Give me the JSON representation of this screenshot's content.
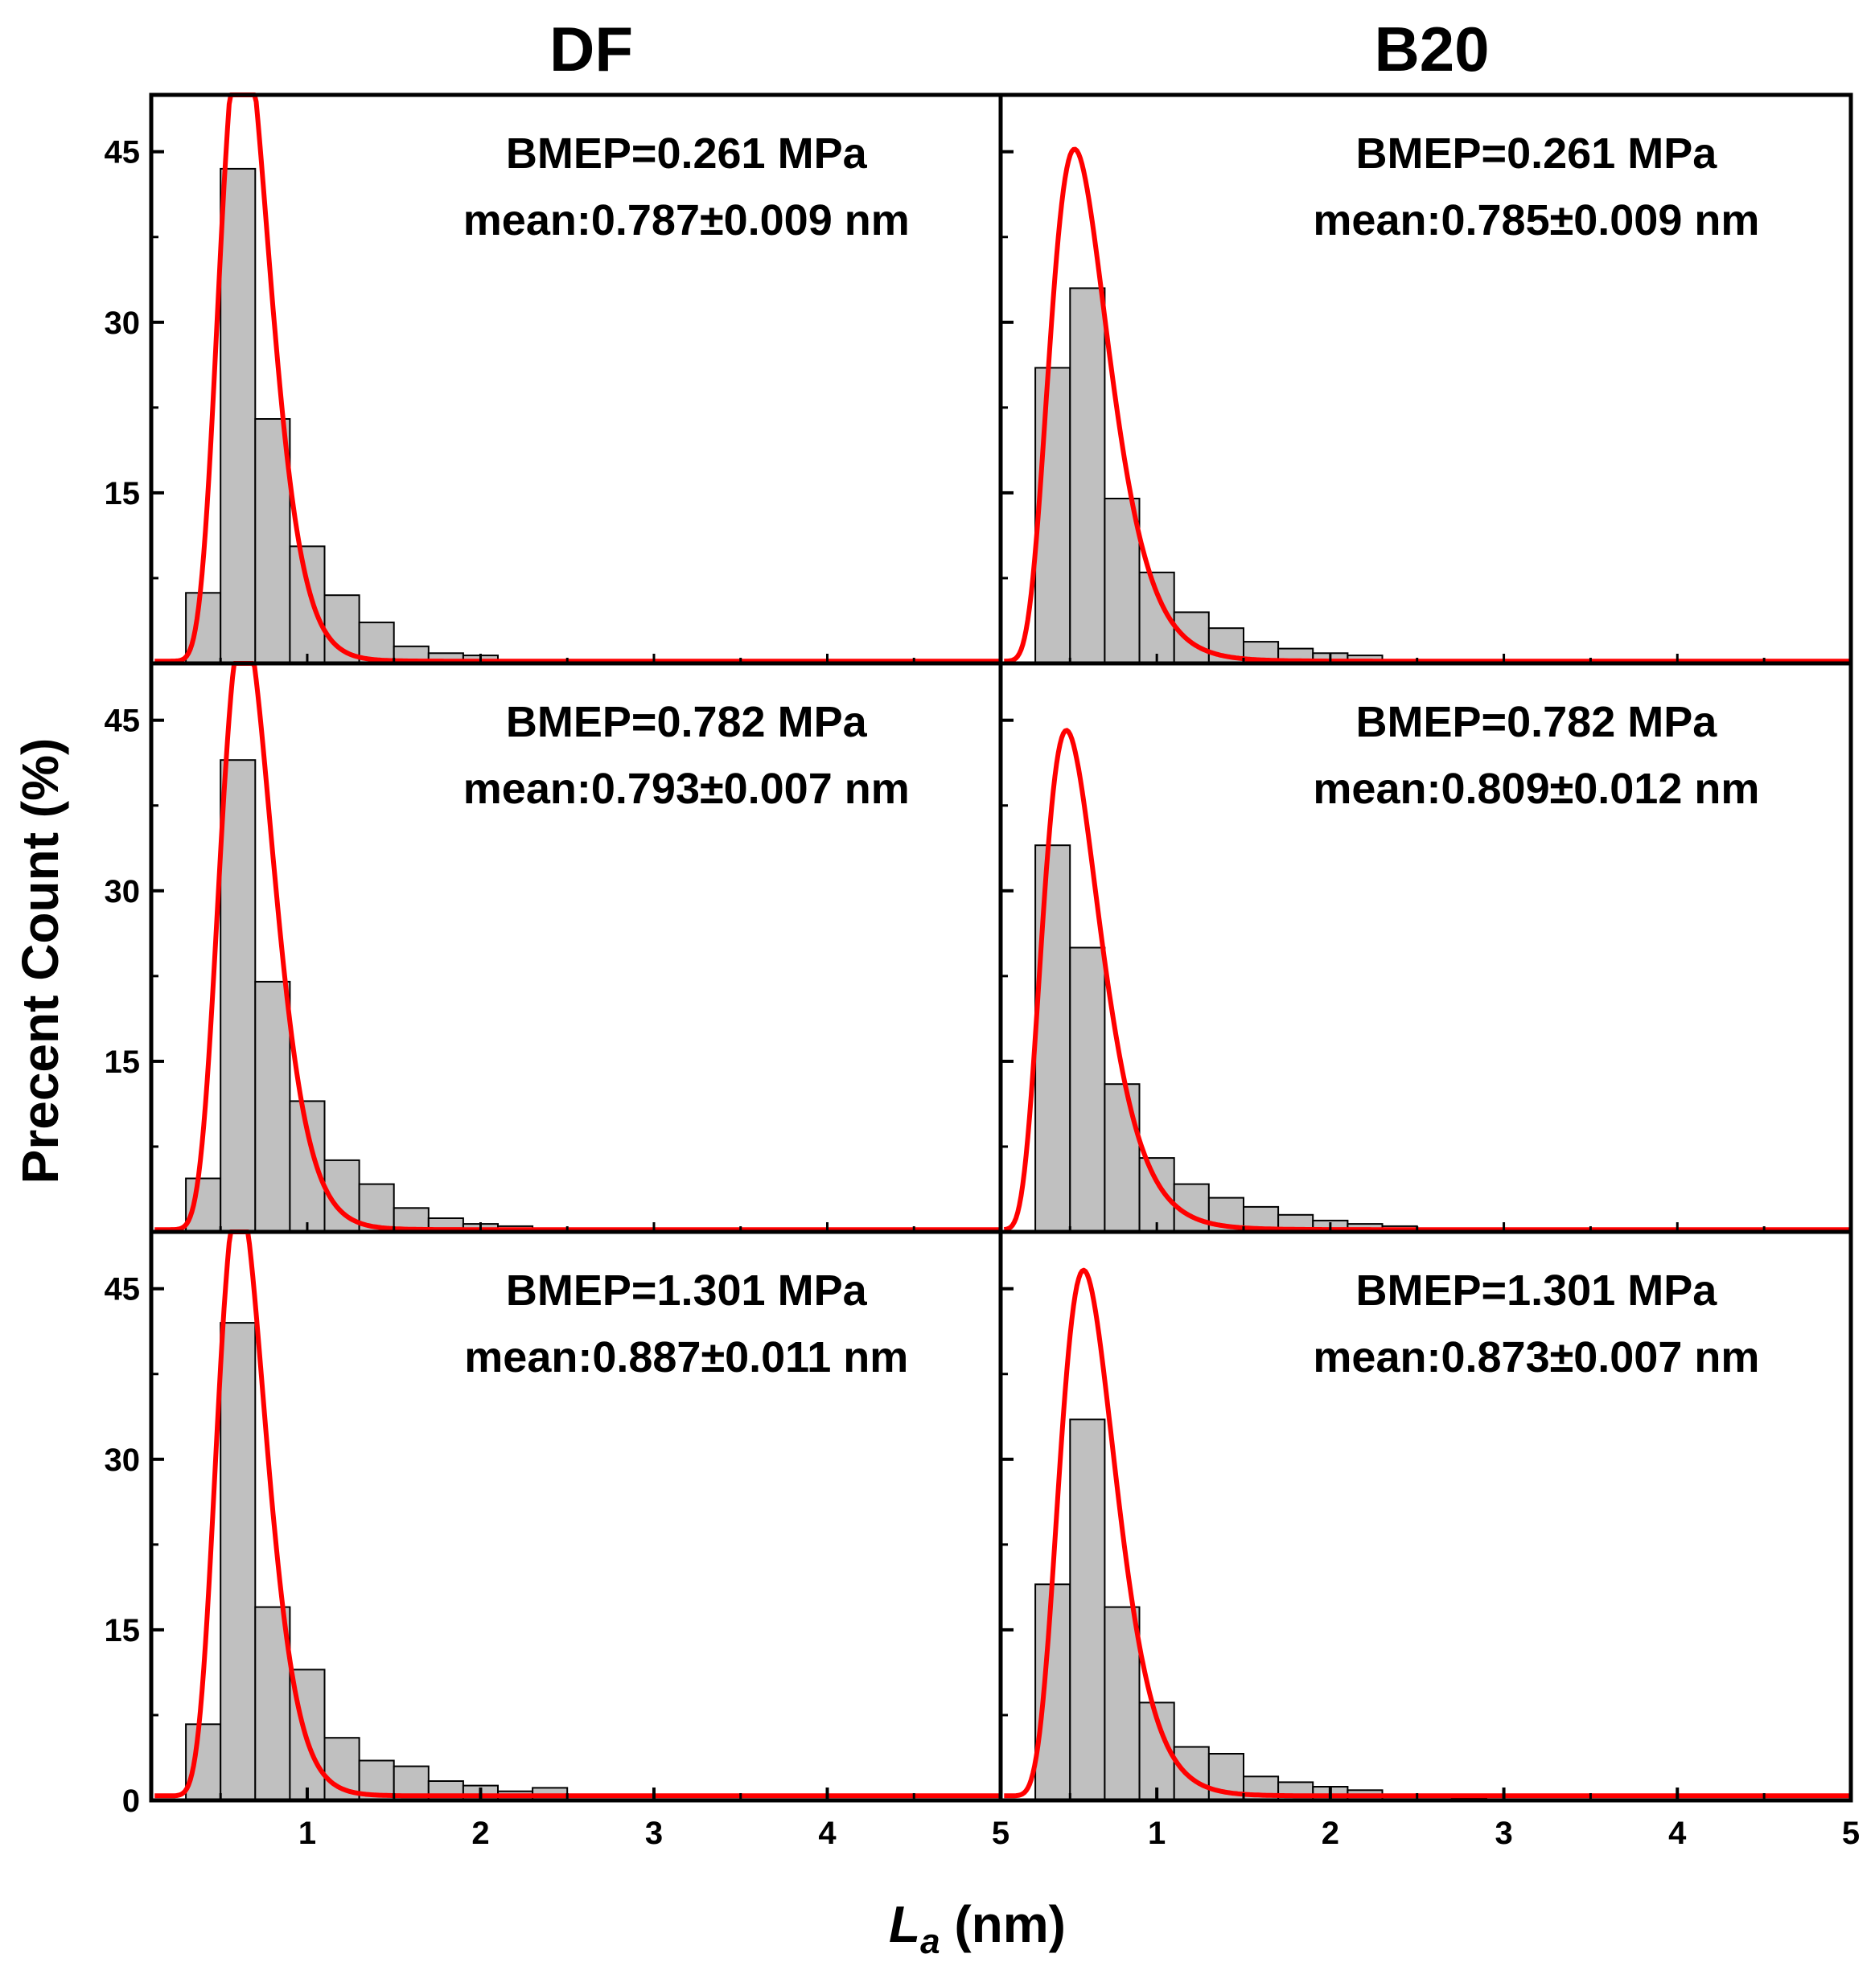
{
  "chart_data": {
    "type": "bar",
    "column_titles": [
      "DF",
      "B20"
    ],
    "xlabel_main": "L",
    "xlabel_sub": "a",
    "xlabel_unit": " (nm)",
    "ylabel": "Precent Count (%)",
    "xlim": [
      0.1,
      5
    ],
    "ylim": [
      0,
      50
    ],
    "x_ticks": [
      1,
      2,
      3,
      4,
      5
    ],
    "x_minor_ticks": [
      0.5,
      1.5,
      2.5,
      3.5,
      4.5
    ],
    "y_ticks": [
      0,
      15,
      30,
      45
    ],
    "y_minor_ticks": [
      7.5,
      22.5,
      37.5
    ],
    "bin_width": 0.2,
    "bar_color": "#c0c0c0",
    "fit_color": "#ff0000",
    "panels": [
      {
        "row": 0,
        "col": 0,
        "fuel": "DF",
        "bmep": "BMEP=0.261 MPa",
        "mean": "mean:0.787±0.009 nm",
        "bin_left": [
          0.3,
          0.5,
          0.7,
          0.9,
          1.1,
          1.3,
          1.5,
          1.7,
          1.9,
          2.1,
          2.3
        ],
        "values": [
          6.2,
          43.5,
          21.5,
          10.3,
          6.0,
          3.6,
          1.5,
          0.9,
          0.7,
          0.2,
          0.1
        ],
        "fit": {
          "mu": -0.42,
          "sigma": 0.23,
          "area": 21,
          "y0": 0.2
        }
      },
      {
        "row": 0,
        "col": 1,
        "fuel": "B20",
        "bmep": "BMEP=0.261 MPa",
        "mean": "mean:0.785±0.009 nm",
        "bin_left": [
          0.3,
          0.5,
          0.7,
          0.9,
          1.1,
          1.3,
          1.5,
          1.7,
          1.9,
          2.1,
          2.3,
          2.5,
          2.7
        ],
        "values": [
          26,
          33,
          14.5,
          8.0,
          4.5,
          3.1,
          1.9,
          1.3,
          0.9,
          0.7,
          0.3,
          0.3,
          0.1
        ],
        "fit": {
          "mu": -0.54,
          "sigma": 0.32,
          "area": 20,
          "y0": 0.2
        }
      },
      {
        "row": 1,
        "col": 0,
        "fuel": "DF",
        "bmep": "BMEP=0.782 MPa",
        "mean": "mean:0.793±0.007 nm",
        "bin_left": [
          0.3,
          0.5,
          0.7,
          0.9,
          1.1,
          1.3,
          1.5,
          1.7,
          1.9,
          2.1,
          2.3
        ],
        "values": [
          4.7,
          41.5,
          22,
          11.5,
          6.3,
          4.2,
          2.1,
          1.2,
          0.7,
          0.5,
          0.1
        ],
        "fit": {
          "mu": -0.4,
          "sigma": 0.24,
          "area": 21,
          "y0": 0.2
        }
      },
      {
        "row": 1,
        "col": 1,
        "fuel": "B20",
        "bmep": "BMEP=0.782 MPa",
        "mean": "mean:0.809±0.012 nm",
        "bin_left": [
          0.3,
          0.5,
          0.7,
          0.9,
          1.1,
          1.3,
          1.5,
          1.7,
          1.9,
          2.1,
          2.3,
          2.5,
          2.7
        ],
        "values": [
          34,
          25,
          13,
          6.5,
          4.2,
          3.0,
          2.2,
          1.5,
          1.0,
          0.7,
          0.5,
          0.3,
          0.2
        ],
        "fit": {
          "mu": -0.62,
          "sigma": 0.34,
          "area": 19,
          "y0": 0.2
        }
      },
      {
        "row": 2,
        "col": 0,
        "fuel": "DF",
        "bmep": "BMEP=1.301 MPa",
        "mean": "mean:0.887±0.011 nm",
        "bin_left": [
          0.3,
          0.5,
          0.7,
          0.9,
          1.1,
          1.3,
          1.5,
          1.7,
          1.9,
          2.1,
          2.3
        ],
        "values": [
          6.7,
          42,
          17,
          11.5,
          5.5,
          3.5,
          3.0,
          1.7,
          1.3,
          0.8,
          1.1
        ],
        "fit": {
          "mu": -0.45,
          "sigma": 0.23,
          "area": 19,
          "y0": 0.4
        }
      },
      {
        "row": 2,
        "col": 1,
        "fuel": "B20",
        "bmep": "BMEP=1.301 MPa",
        "mean": "mean:0.873±0.007 nm",
        "bin_left": [
          0.3,
          0.5,
          0.7,
          0.9,
          1.1,
          1.3,
          1.5,
          1.7,
          1.9,
          2.1,
          2.3,
          2.5,
          2.7
        ],
        "values": [
          19,
          33.5,
          17,
          8.6,
          4.7,
          4.1,
          2.1,
          1.6,
          1.2,
          0.9,
          0.5,
          0.3,
          0.2
        ],
        "fit": {
          "mu": -0.47,
          "sigma": 0.28,
          "area": 19.5,
          "y0": 0.4
        }
      }
    ]
  }
}
